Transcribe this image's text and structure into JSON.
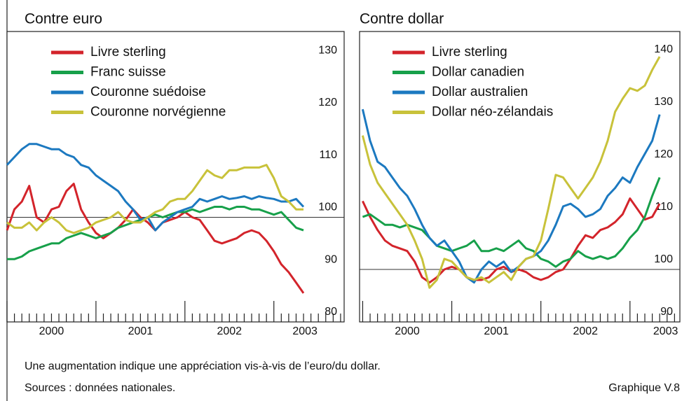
{
  "chart_data": [
    {
      "type": "line",
      "title": "Contre euro",
      "legend": "upper left",
      "hline": 100,
      "x": [
        2000,
        2000.083,
        2000.167,
        2000.25,
        2000.333,
        2000.417,
        2000.5,
        2000.583,
        2000.667,
        2000.75,
        2000.833,
        2000.917,
        2001,
        2001.083,
        2001.167,
        2001.25,
        2001.333,
        2001.417,
        2001.5,
        2001.583,
        2001.667,
        2001.75,
        2001.833,
        2001.917,
        2002,
        2002.083,
        2002.167,
        2002.25,
        2002.333,
        2002.417,
        2002.5,
        2002.583,
        2002.667,
        2002.75,
        2002.833,
        2002.917,
        2003,
        2003.083,
        2003.167,
        2003.25,
        2003.333
      ],
      "xlim": [
        2000,
        2003.79
      ],
      "xticks": [
        {
          "value": 2000.5,
          "label": "2000"
        },
        {
          "value": 2001.5,
          "label": "2001"
        },
        {
          "value": 2002.5,
          "label": "2002"
        },
        {
          "value": 2003.35,
          "label": "2003"
        }
      ],
      "ylim": [
        80,
        135.5
      ],
      "yticks": [
        80,
        90,
        100,
        110,
        120,
        130
      ],
      "series": [
        {
          "name": "Livre sterling",
          "color": "#d3242b",
          "values": [
            97.5,
            101.5,
            103,
            106,
            100,
            99,
            101.5,
            102,
            105,
            106.4,
            101.5,
            99,
            97,
            96,
            97,
            98,
            99.5,
            101.5,
            100,
            99,
            97.5,
            99,
            99.5,
            100,
            101,
            100,
            99.5,
            97.5,
            95.5,
            95,
            95.5,
            96,
            97,
            97.5,
            97,
            95.5,
            93.5,
            91,
            89.5,
            87.5,
            85.5
          ]
        },
        {
          "name": "Franc suisse",
          "color": "#17a04a",
          "values": [
            92,
            92,
            92.5,
            93.5,
            94,
            94.5,
            95,
            95,
            96,
            96.5,
            97,
            96.5,
            96,
            96.5,
            97,
            98,
            98.5,
            99,
            99.5,
            100,
            100.5,
            100,
            100.5,
            101,
            101,
            101.5,
            101,
            101.5,
            102,
            102,
            101.5,
            102,
            102,
            101.5,
            101.5,
            101,
            100.5,
            101,
            99.5,
            98,
            97.5
          ]
        },
        {
          "name": "Couronne suédoise",
          "color": "#1c79c0",
          "values": [
            110,
            111.5,
            113,
            114,
            114,
            113.5,
            113,
            113,
            112,
            111.5,
            110,
            109.5,
            108,
            107,
            106,
            105,
            103,
            101.5,
            99.5,
            100,
            97.5,
            99,
            100,
            101,
            101.5,
            102,
            103.5,
            103,
            103.5,
            104,
            103.5,
            103.7,
            104,
            103.5,
            104,
            103.7,
            103.5,
            103,
            103,
            103.5,
            102
          ]
        },
        {
          "name": "Couronne norvégienne",
          "color": "#c8c23a",
          "values": [
            99,
            98,
            98,
            99,
            97.5,
            99,
            100,
            99,
            97.5,
            97,
            97.5,
            98,
            99,
            99.5,
            100,
            101,
            99.5,
            99,
            99,
            100,
            101,
            101.5,
            103,
            103.5,
            103.5,
            105,
            107,
            109,
            108,
            107.5,
            109,
            109,
            109.5,
            109.5,
            109.5,
            110,
            107.5,
            104,
            103,
            101.5,
            101.5
          ]
        }
      ]
    },
    {
      "type": "line",
      "title": "Contre dollar",
      "legend": "upper left",
      "hline": 100,
      "x": [
        2000,
        2000.083,
        2000.167,
        2000.25,
        2000.333,
        2000.417,
        2000.5,
        2000.583,
        2000.667,
        2000.75,
        2000.833,
        2000.917,
        2001,
        2001.083,
        2001.167,
        2001.25,
        2001.333,
        2001.417,
        2001.5,
        2001.583,
        2001.667,
        2001.75,
        2001.833,
        2001.917,
        2002,
        2002.083,
        2002.167,
        2002.25,
        2002.333,
        2002.417,
        2002.5,
        2002.583,
        2002.667,
        2002.75,
        2002.833,
        2002.917,
        2003,
        2003.083,
        2003.167,
        2003.25,
        2003.333
      ],
      "xlim": [
        1999.965,
        2003.56
      ],
      "xticks": [
        {
          "value": 2000.5,
          "label": "2000"
        },
        {
          "value": 2001.5,
          "label": "2001"
        },
        {
          "value": 2002.5,
          "label": "2002"
        },
        {
          "value": 2003.4,
          "label": "2003"
        }
      ],
      "ylim": [
        90,
        145.3
      ],
      "yticks": [
        90,
        100,
        110,
        120,
        130,
        140
      ],
      "series": [
        {
          "name": "Livre sterling",
          "color": "#d3242b",
          "values": [
            113,
            110,
            107.5,
            105.5,
            104.5,
            104,
            103.5,
            101.5,
            98.5,
            97.5,
            98.5,
            100,
            100.5,
            100,
            98.5,
            98,
            98,
            98.5,
            100,
            100.5,
            99.5,
            100,
            99.5,
            98.5,
            98,
            98.5,
            99.5,
            100,
            102,
            104.5,
            106.5,
            106,
            107.5,
            108,
            109,
            110.5,
            113.5,
            111.5,
            109.5,
            110,
            112.5
          ]
        },
        {
          "name": "Dollar canadien",
          "color": "#17a04a",
          "values": [
            110,
            110.5,
            109.5,
            108.5,
            108.5,
            108,
            108.5,
            108,
            107.5,
            106,
            104.5,
            104,
            103.5,
            104,
            104.5,
            105.5,
            103.5,
            103.5,
            104,
            103.5,
            104.5,
            105.5,
            104,
            103.5,
            102,
            101.5,
            100.5,
            101.5,
            102,
            103.5,
            102.5,
            102,
            102.5,
            102,
            102.5,
            104,
            106,
            107.5,
            110,
            114,
            117.5
          ]
        },
        {
          "name": "Dollar australien",
          "color": "#1c79c0",
          "values": [
            130.5,
            124.5,
            120.5,
            119.5,
            117.5,
            115.5,
            114,
            111.5,
            108.5,
            106,
            104.5,
            105.5,
            103.5,
            101.5,
            98.5,
            97.5,
            100,
            101.5,
            100.5,
            101.5,
            99.5,
            100.5,
            102,
            102.5,
            103.5,
            105.5,
            108.5,
            112,
            112.5,
            111.5,
            110,
            110.5,
            111.5,
            114,
            115.5,
            117.5,
            116.5,
            119.5,
            122,
            124.5,
            129.5
          ]
        },
        {
          "name": "Dollar néo-zélandais",
          "color": "#c8c23a",
          "values": [
            125.5,
            120,
            116.5,
            114.5,
            112.5,
            110.5,
            108.5,
            105.5,
            102,
            96.5,
            98,
            102,
            101.5,
            100,
            98.5,
            98,
            98.5,
            97.5,
            98.5,
            99.5,
            98,
            100.5,
            102,
            102.5,
            105.5,
            111.5,
            118,
            117.5,
            115.5,
            113.5,
            115.5,
            117.5,
            120.5,
            124.5,
            130,
            132.5,
            134.5,
            134,
            135,
            138,
            140.5
          ]
        }
      ]
    }
  ],
  "note": "Une augmentation indique une appréciation vis-à-vis de l’euro/du dollar.",
  "source": "Sources : données nationales.",
  "figure_label": "Graphique V.8"
}
